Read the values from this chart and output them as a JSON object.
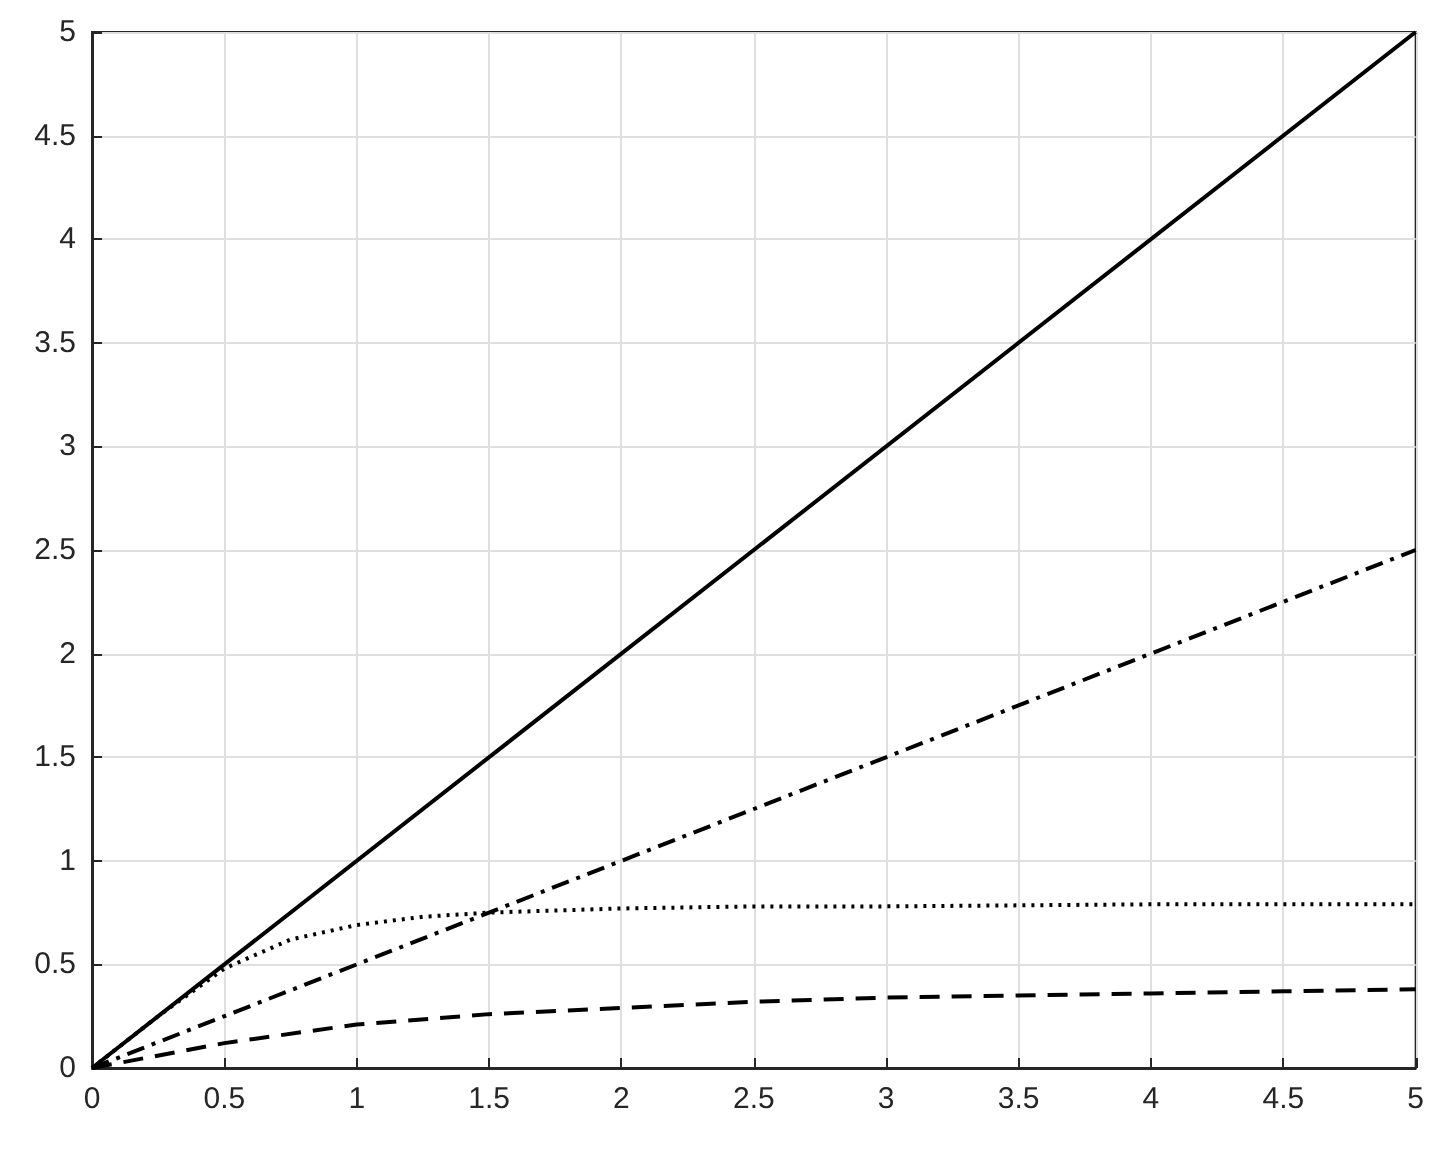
{
  "chart_data": {
    "type": "line",
    "xlim": [
      0,
      5
    ],
    "ylim": [
      0,
      5
    ],
    "xticks": [
      0,
      0.5,
      1,
      1.5,
      2,
      2.5,
      3,
      3.5,
      4,
      4.5,
      5
    ],
    "yticks": [
      0,
      0.5,
      1,
      1.5,
      2,
      2.5,
      3,
      3.5,
      4,
      4.5,
      5
    ],
    "grid": true,
    "marker": "none",
    "series": [
      {
        "color": "#000000",
        "line_style": "solid",
        "x": [
          0,
          5
        ],
        "values": [
          0,
          5
        ]
      },
      {
        "color": "#000000",
        "line_style": "dashdot",
        "x": [
          0,
          5
        ],
        "values": [
          0,
          2.5
        ]
      },
      {
        "color": "#000000",
        "line_style": "dotted",
        "x": [
          0,
          0.25,
          0.5,
          0.75,
          1,
          1.25,
          1.5,
          2,
          2.5,
          3,
          4,
          5
        ],
        "values": [
          0,
          0.25,
          0.48,
          0.62,
          0.69,
          0.73,
          0.75,
          0.77,
          0.78,
          0.78,
          0.79,
          0.79
        ]
      },
      {
        "color": "#000000",
        "line_style": "dashed",
        "x": [
          0,
          0.5,
          1,
          1.5,
          2,
          2.5,
          3,
          3.5,
          4,
          4.5,
          5
        ],
        "values": [
          0,
          0.12,
          0.21,
          0.26,
          0.29,
          0.32,
          0.34,
          0.35,
          0.36,
          0.37,
          0.38
        ]
      }
    ]
  }
}
